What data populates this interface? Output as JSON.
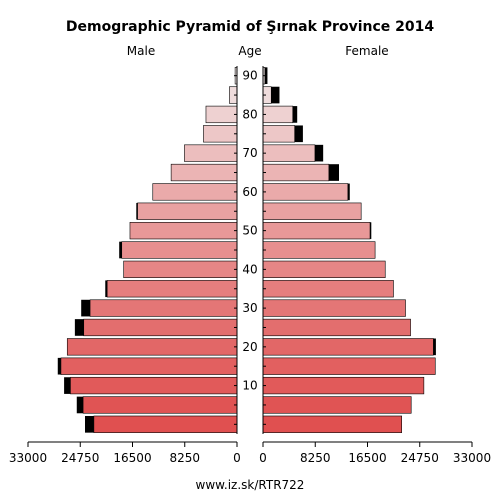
{
  "chart_data": {
    "type": "bar",
    "title": "Demographic Pyramid of Şırnak Province 2014",
    "male_label": "Male",
    "female_label": "Female",
    "age_label": "Age",
    "footer": "www.iz.sk/RTR722",
    "x_max": 33000,
    "x_ticks": [
      33000,
      24750,
      16500,
      8250,
      0
    ],
    "x_tick_labels": [
      "33000",
      "24750",
      "16500",
      "8250",
      "0"
    ],
    "age_ticks": [
      10,
      20,
      30,
      40,
      50,
      60,
      70,
      80,
      90
    ],
    "age_groups": [
      "0-4",
      "5-9",
      "10-14",
      "15-19",
      "20-24",
      "25-29",
      "30-34",
      "35-39",
      "40-44",
      "45-49",
      "50-54",
      "55-59",
      "60-64",
      "65-69",
      "70-74",
      "75-79",
      "80-84",
      "85-89",
      "90+"
    ],
    "male": [
      22600,
      24300,
      26300,
      27800,
      26800,
      24200,
      23200,
      20500,
      17900,
      18200,
      16900,
      15700,
      13300,
      10400,
      8300,
      5300,
      4900,
      1200,
      300
    ],
    "male_excess": [
      1400,
      1000,
      1000,
      500,
      0,
      1400,
      1400,
      300,
      0,
      400,
      0,
      200,
      0,
      0,
      0,
      0,
      0,
      0,
      0
    ],
    "female": [
      21900,
      23400,
      25400,
      27200,
      26900,
      23300,
      22500,
      20600,
      19300,
      17700,
      16900,
      15500,
      13400,
      10400,
      8200,
      5000,
      4700,
      1300,
      300
    ],
    "female_excess": [
      0,
      0,
      0,
      0,
      400,
      0,
      0,
      0,
      0,
      0,
      200,
      0,
      300,
      1600,
      1300,
      1300,
      700,
      1300,
      400
    ],
    "colors": {
      "bar_young": "#e05050",
      "bar_old": "#f0e6e6",
      "excess": "#000000",
      "outline": "#000000"
    }
  }
}
